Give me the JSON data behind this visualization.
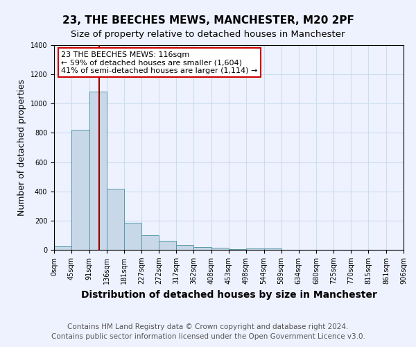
{
  "title1": "23, THE BEECHES MEWS, MANCHESTER, M20 2PF",
  "title2": "Size of property relative to detached houses in Manchester",
  "xlabel": "Distribution of detached houses by size in Manchester",
  "ylabel": "Number of detached properties",
  "footnote1": "Contains HM Land Registry data © Crown copyright and database right 2024.",
  "footnote2": "Contains public sector information licensed under the Open Government Licence v3.0.",
  "annotation_line1": "23 THE BEECHES MEWS: 116sqm",
  "annotation_line2": "← 59% of detached houses are smaller (1,604)",
  "annotation_line3": "41% of semi-detached houses are larger (1,114) →",
  "bar_edges": [
    0,
    45,
    91,
    136,
    181,
    227,
    272,
    317,
    362,
    408,
    453,
    498,
    544,
    589,
    634,
    680,
    725,
    770,
    815,
    861,
    906
  ],
  "bar_heights": [
    25,
    820,
    1080,
    420,
    185,
    100,
    60,
    35,
    20,
    15,
    5,
    10,
    10,
    0,
    0,
    0,
    0,
    0,
    0,
    0
  ],
  "bar_color": "#c8d8e8",
  "bar_edge_color": "#5599aa",
  "property_line_x": 116,
  "property_line_color": "#990000",
  "ylim": [
    0,
    1400
  ],
  "yticks": [
    0,
    200,
    400,
    600,
    800,
    1000,
    1200,
    1400
  ],
  "grid_color": "#ccddee",
  "background_color": "#eef2ff",
  "annotation_box_color": "#ffffff",
  "annotation_border_color": "#cc0000",
  "title1_fontsize": 11,
  "title2_fontsize": 9.5,
  "xlabel_fontsize": 10,
  "ylabel_fontsize": 9,
  "tick_fontsize": 7,
  "footnote_fontsize": 7.5
}
